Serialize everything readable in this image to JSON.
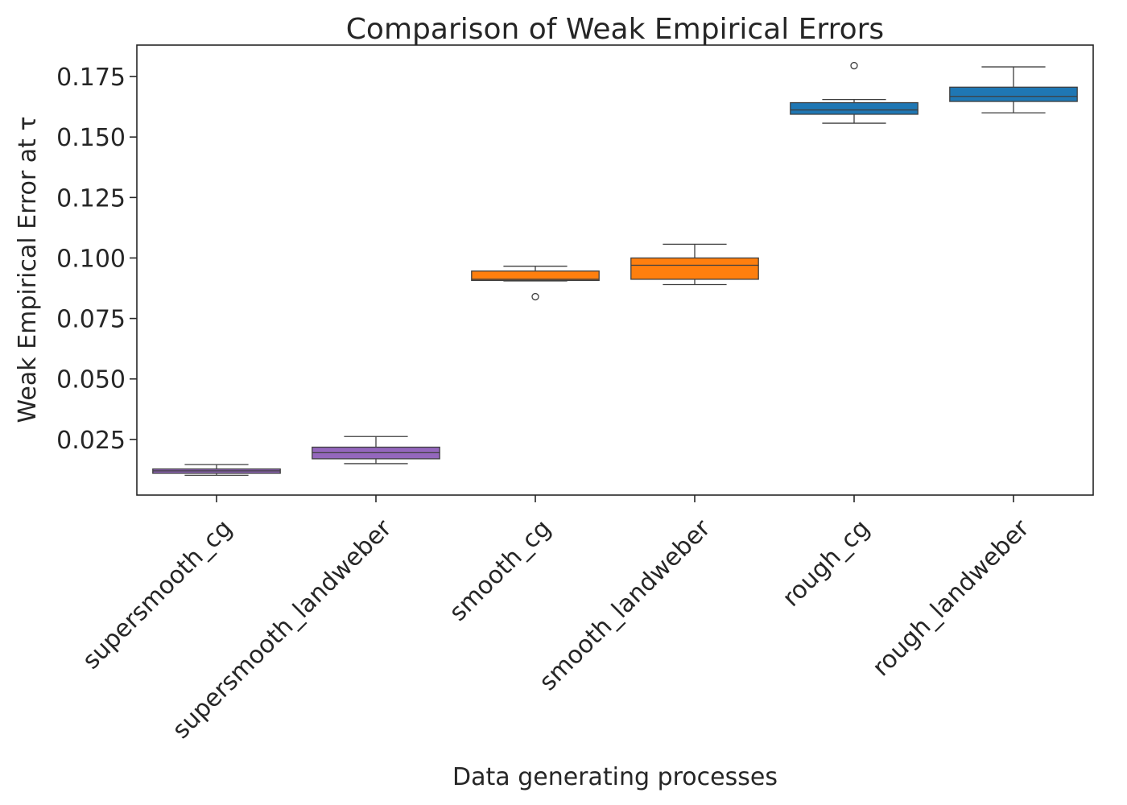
{
  "chart_data": {
    "type": "box",
    "title": "Comparison of Weak Empirical Errors",
    "xlabel": "Data generating processes",
    "ylabel": "Weak Empirical Error at τ",
    "ylim": [
      0.002,
      0.188
    ],
    "yticks": [
      "0.025",
      "0.050",
      "0.075",
      "0.100",
      "0.125",
      "0.150",
      "0.175"
    ],
    "ytick_values": [
      0.025,
      0.05,
      0.075,
      0.1,
      0.125,
      0.15,
      0.175
    ],
    "grid": false,
    "categories": [
      "supersmooth_cg",
      "supersmooth_landweber",
      "smooth_cg",
      "smooth_landweber",
      "rough_cg",
      "rough_landweber"
    ],
    "colors": [
      "#9467bd",
      "#9467bd",
      "#ff7f0e",
      "#ff7f0e",
      "#1f77b4",
      "#1f77b4"
    ],
    "boxes": [
      {
        "category": "supersmooth_cg",
        "whisker_low": 0.0102,
        "q1": 0.011,
        "median": 0.012,
        "q3": 0.0128,
        "whisker_high": 0.0146,
        "outliers": []
      },
      {
        "category": "supersmooth_landweber",
        "whisker_low": 0.015,
        "q1": 0.017,
        "median": 0.0195,
        "q3": 0.0218,
        "whisker_high": 0.0262,
        "outliers": []
      },
      {
        "category": "smooth_cg",
        "whisker_low": 0.0905,
        "q1": 0.0907,
        "median": 0.0912,
        "q3": 0.0946,
        "whisker_high": 0.0966,
        "outliers": [
          0.084
        ]
      },
      {
        "category": "smooth_landweber",
        "whisker_low": 0.089,
        "q1": 0.0912,
        "median": 0.097,
        "q3": 0.1,
        "whisker_high": 0.1057,
        "outliers": []
      },
      {
        "category": "rough_cg",
        "whisker_low": 0.1557,
        "q1": 0.1594,
        "median": 0.1612,
        "q3": 0.1642,
        "whisker_high": 0.1655,
        "outliers": [
          0.1795
        ]
      },
      {
        "category": "rough_landweber",
        "whisker_low": 0.16,
        "q1": 0.1647,
        "median": 0.1668,
        "q3": 0.1706,
        "whisker_high": 0.179,
        "outliers": []
      }
    ]
  }
}
